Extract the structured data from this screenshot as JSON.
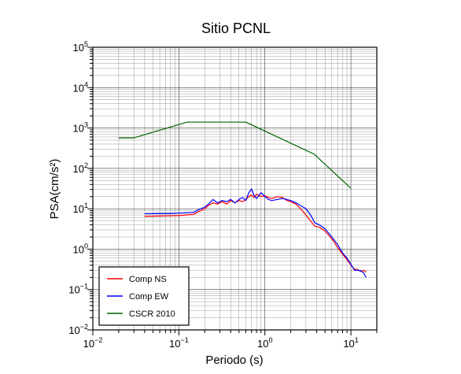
{
  "chart_data": {
    "type": "line",
    "title": "Sitio PCNL",
    "xlabel": "Periodo (s)",
    "ylabel": "PSA(cm/s²)",
    "xscale": "log",
    "yscale": "log",
    "xlim": [
      0.01,
      20
    ],
    "ylim": [
      0.01,
      100000
    ],
    "grid": true,
    "legend_position": "bottom-left",
    "x_ticks": [
      {
        "value": 0.01,
        "base": "10",
        "exp": "−2"
      },
      {
        "value": 0.1,
        "base": "10",
        "exp": "−1"
      },
      {
        "value": 1,
        "base": "10",
        "exp": "0"
      },
      {
        "value": 10,
        "base": "10",
        "exp": "1"
      }
    ],
    "y_ticks": [
      {
        "value": 0.01,
        "base": "10",
        "exp": "−2"
      },
      {
        "value": 0.1,
        "base": "10",
        "exp": "−1"
      },
      {
        "value": 1,
        "base": "10",
        "exp": "0"
      },
      {
        "value": 10,
        "base": "10",
        "exp": "1"
      },
      {
        "value": 100,
        "base": "10",
        "exp": "2"
      },
      {
        "value": 1000,
        "base": "10",
        "exp": "3"
      },
      {
        "value": 10000,
        "base": "10",
        "exp": "4"
      },
      {
        "value": 100000,
        "base": "10",
        "exp": "5"
      }
    ],
    "series": [
      {
        "name": "Comp NS",
        "color": "#ff0000",
        "points": [
          [
            0.04,
            6.5
          ],
          [
            0.06,
            6.6
          ],
          [
            0.08,
            6.7
          ],
          [
            0.1,
            6.8
          ],
          [
            0.12,
            7.0
          ],
          [
            0.15,
            7.3
          ],
          [
            0.17,
            8.5
          ],
          [
            0.2,
            10
          ],
          [
            0.22,
            12
          ],
          [
            0.25,
            14
          ],
          [
            0.28,
            13
          ],
          [
            0.32,
            15
          ],
          [
            0.36,
            13
          ],
          [
            0.4,
            16
          ],
          [
            0.45,
            14
          ],
          [
            0.5,
            16
          ],
          [
            0.55,
            15
          ],
          [
            0.6,
            17
          ],
          [
            0.65,
            20
          ],
          [
            0.7,
            22
          ],
          [
            0.75,
            19
          ],
          [
            0.8,
            23
          ],
          [
            0.9,
            20
          ],
          [
            1.0,
            21
          ],
          [
            1.1,
            19
          ],
          [
            1.2,
            18
          ],
          [
            1.4,
            20
          ],
          [
            1.6,
            19
          ],
          [
            1.8,
            16
          ],
          [
            2.0,
            15
          ],
          [
            2.3,
            13
          ],
          [
            2.6,
            10
          ],
          [
            3.0,
            7
          ],
          [
            3.4,
            5
          ],
          [
            3.8,
            3.7
          ],
          [
            4.3,
            3.5
          ],
          [
            5.0,
            2.8
          ],
          [
            6.0,
            1.8
          ],
          [
            7.0,
            1.1
          ],
          [
            8.0,
            0.75
          ],
          [
            9.0,
            0.55
          ],
          [
            10,
            0.4
          ],
          [
            11,
            0.32
          ],
          [
            12,
            0.31
          ],
          [
            13,
            0.28
          ],
          [
            14,
            0.3
          ],
          [
            15,
            0.27
          ]
        ]
      },
      {
        "name": "Comp EW",
        "color": "#0000ff",
        "points": [
          [
            0.04,
            7.5
          ],
          [
            0.06,
            7.6
          ],
          [
            0.08,
            7.6
          ],
          [
            0.1,
            7.8
          ],
          [
            0.12,
            7.9
          ],
          [
            0.15,
            8.2
          ],
          [
            0.17,
            9.5
          ],
          [
            0.2,
            11
          ],
          [
            0.22,
            13
          ],
          [
            0.25,
            17
          ],
          [
            0.28,
            14
          ],
          [
            0.32,
            16
          ],
          [
            0.36,
            15
          ],
          [
            0.4,
            17
          ],
          [
            0.45,
            14
          ],
          [
            0.5,
            17
          ],
          [
            0.55,
            19
          ],
          [
            0.6,
            16
          ],
          [
            0.65,
            25
          ],
          [
            0.7,
            31
          ],
          [
            0.75,
            21
          ],
          [
            0.8,
            18
          ],
          [
            0.9,
            25
          ],
          [
            1.0,
            20
          ],
          [
            1.1,
            17
          ],
          [
            1.2,
            16
          ],
          [
            1.4,
            17
          ],
          [
            1.6,
            18
          ],
          [
            1.8,
            17
          ],
          [
            2.0,
            16
          ],
          [
            2.3,
            14
          ],
          [
            2.6,
            12
          ],
          [
            3.0,
            10
          ],
          [
            3.4,
            7
          ],
          [
            3.8,
            4.5
          ],
          [
            4.3,
            4.0
          ],
          [
            5.0,
            3.2
          ],
          [
            6.0,
            2.0
          ],
          [
            7.0,
            1.3
          ],
          [
            8.0,
            0.8
          ],
          [
            9.0,
            0.6
          ],
          [
            10,
            0.42
          ],
          [
            11,
            0.3
          ],
          [
            12,
            0.3
          ],
          [
            13,
            0.29
          ],
          [
            14,
            0.26
          ],
          [
            15,
            0.2
          ]
        ]
      },
      {
        "name": "CSCR 2010",
        "color": "#006400",
        "points": [
          [
            0.02,
            570
          ],
          [
            0.03,
            570
          ],
          [
            0.125,
            1400
          ],
          [
            0.6,
            1400
          ],
          [
            3.75,
            224
          ],
          [
            10,
            32
          ]
        ]
      }
    ]
  }
}
